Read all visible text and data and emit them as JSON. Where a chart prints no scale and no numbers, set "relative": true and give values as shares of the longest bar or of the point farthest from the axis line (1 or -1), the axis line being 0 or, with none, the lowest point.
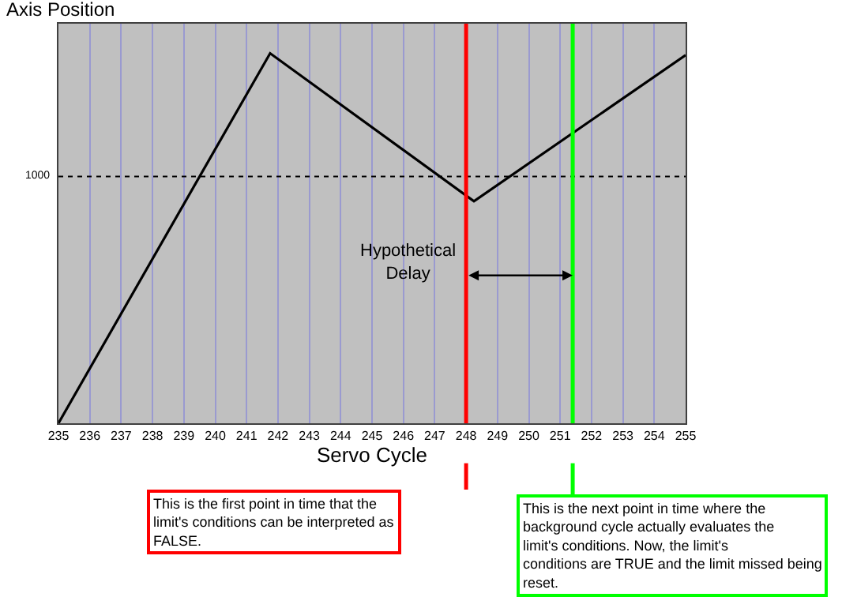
{
  "chart_data": {
    "type": "line",
    "relative": true,
    "xlabel": "Servo Cycle",
    "ylabel": "Axis Position",
    "x": [
      235,
      241.75,
      248.25,
      255
    ],
    "series": [
      {
        "color": "#000000",
        "values": [
          0,
          1,
          0.6,
          0.995
        ]
      }
    ],
    "xlim": [
      235,
      255
    ],
    "xticks": [
      235,
      236,
      237,
      238,
      239,
      240,
      241,
      242,
      243,
      244,
      245,
      246,
      247,
      248,
      249,
      250,
      251,
      252,
      253,
      254,
      255
    ],
    "grid": "x",
    "marker": "none",
    "line_style": "solid",
    "ref_lines": [
      {
        "axis": "y",
        "value": 0.667,
        "label": null,
        "color": "#000000",
        "line_style": "dotted"
      },
      {
        "axis": "x",
        "value": 248,
        "label": null,
        "color": "#ff0000"
      },
      {
        "axis": "x",
        "value": 251.4,
        "label": null,
        "color": "#00ff00"
      }
    ],
    "annotations": [
      "1000",
      "Hypothetical Delay",
      "This is the first point in time that the limit's conditions can be interpreted as FALSE.",
      "This is the next point in time where the background cycle actually evaluates the limit's conditions. Now, the limit's conditions are TRUE and the limit missed being reset."
    ]
  }
}
